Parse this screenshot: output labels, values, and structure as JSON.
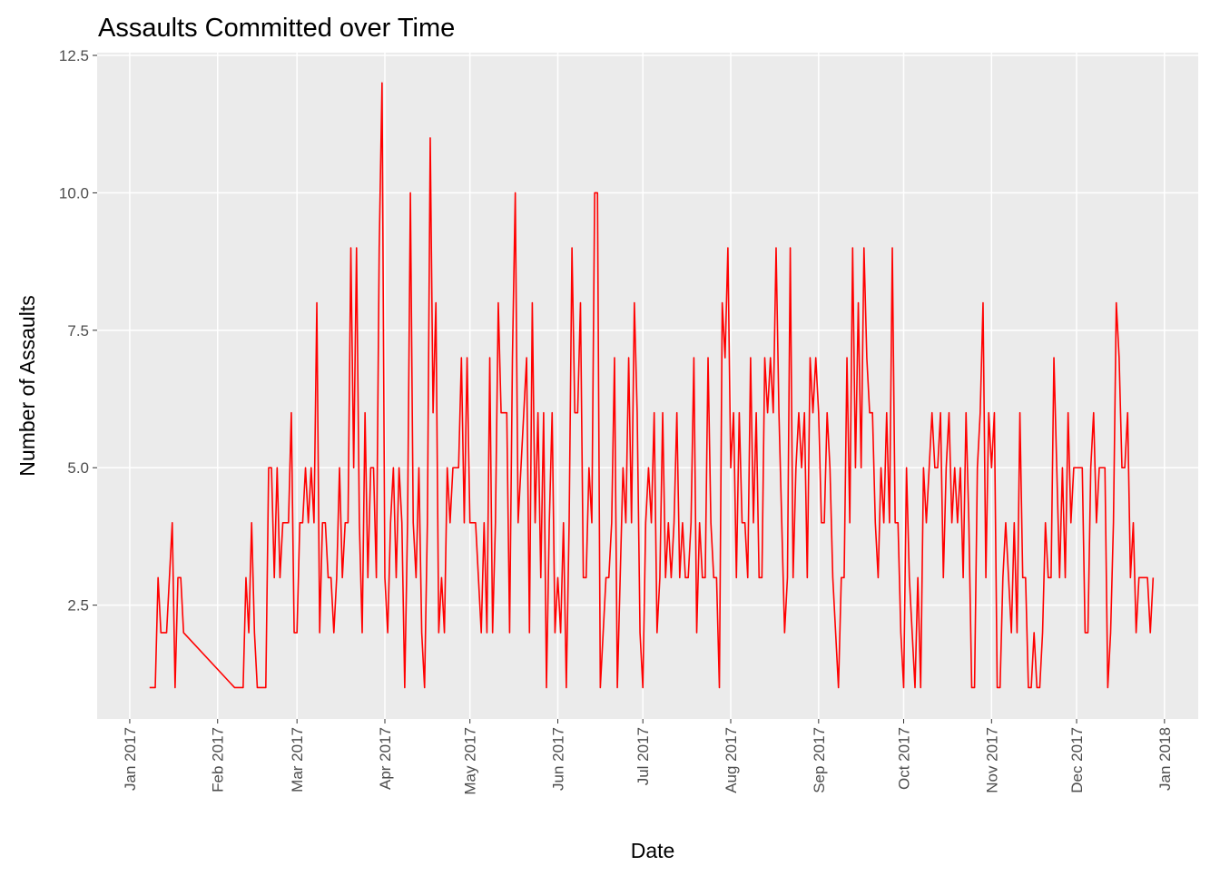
{
  "chart_data": {
    "type": "line",
    "title": "Assaults Committed over Time",
    "x_label": "Date",
    "y_label": "Number of Assaults",
    "xlim": [
      -11.5,
      376.9
    ],
    "xticks": [
      {
        "value": 0,
        "label": "Jan 2017"
      },
      {
        "value": 31,
        "label": "Feb 2017"
      },
      {
        "value": 59,
        "label": "Mar 2017"
      },
      {
        "value": 90,
        "label": "Apr 2017"
      },
      {
        "value": 120,
        "label": "May 2017"
      },
      {
        "value": 151,
        "label": "Jun 2017"
      },
      {
        "value": 181,
        "label": "Jul 2017"
      },
      {
        "value": 212,
        "label": "Aug 2017"
      },
      {
        "value": 243,
        "label": "Sep 2017"
      },
      {
        "value": 273,
        "label": "Oct 2017"
      },
      {
        "value": 304,
        "label": "Nov 2017"
      },
      {
        "value": 334,
        "label": "Dec 2017"
      },
      {
        "value": 365,
        "label": "Jan 2018"
      }
    ],
    "ylim": [
      0.43,
      12.55
    ],
    "yticks": [
      {
        "value": 2.5,
        "label": "2.5"
      },
      {
        "value": 5,
        "label": "5.0"
      },
      {
        "value": 7.5,
        "label": "7.5"
      },
      {
        "value": 10,
        "label": "10.0"
      },
      {
        "value": 12.5,
        "label": "12.5"
      }
    ],
    "grid": true,
    "color": "#ff0000",
    "x": [
      7,
      8,
      9,
      10,
      11,
      12,
      13,
      14,
      15,
      16,
      17,
      18,
      19,
      37,
      38,
      39,
      40,
      41,
      42,
      43,
      44,
      45,
      46,
      47,
      48,
      49,
      50,
      51,
      52,
      53,
      54,
      55,
      56,
      57,
      58,
      59,
      60,
      61,
      62,
      63,
      64,
      65,
      66,
      67,
      68,
      69,
      70,
      71,
      72,
      73,
      74,
      75,
      76,
      77,
      78,
      79,
      80,
      81,
      82,
      83,
      84,
      85,
      86,
      87,
      88,
      89,
      90,
      91,
      92,
      93,
      94,
      95,
      96,
      97,
      98,
      99,
      100,
      101,
      102,
      103,
      104,
      105,
      106,
      107,
      108,
      109,
      110,
      111,
      112,
      113,
      114,
      115,
      116,
      117,
      118,
      119,
      120,
      121,
      122,
      123,
      124,
      125,
      126,
      127,
      128,
      129,
      130,
      131,
      132,
      133,
      134,
      135,
      136,
      137,
      138,
      139,
      140,
      141,
      142,
      143,
      144,
      145,
      146,
      147,
      148,
      149,
      150,
      151,
      152,
      153,
      154,
      155,
      156,
      157,
      158,
      159,
      160,
      161,
      162,
      163,
      164,
      165,
      166,
      167,
      168,
      169,
      170,
      171,
      172,
      173,
      174,
      175,
      176,
      177,
      178,
      179,
      180,
      181,
      182,
      183,
      184,
      185,
      186,
      187,
      188,
      189,
      190,
      191,
      192,
      193,
      194,
      195,
      196,
      197,
      198,
      199,
      200,
      201,
      202,
      203,
      204,
      205,
      206,
      207,
      208,
      209,
      210,
      211,
      212,
      213,
      214,
      215,
      216,
      217,
      218,
      219,
      220,
      221,
      222,
      223,
      224,
      225,
      226,
      227,
      228,
      229,
      230,
      231,
      232,
      233,
      234,
      235,
      236,
      237,
      238,
      239,
      240,
      241,
      242,
      243,
      244,
      245,
      246,
      247,
      248,
      249,
      250,
      251,
      252,
      253,
      254,
      255,
      256,
      257,
      258,
      259,
      260,
      261,
      262,
      263,
      264,
      265,
      266,
      267,
      268,
      269,
      270,
      271,
      272,
      273,
      274,
      275,
      276,
      277,
      278,
      279,
      280,
      281,
      282,
      283,
      284,
      285,
      286,
      287,
      288,
      289,
      290,
      291,
      292,
      293,
      294,
      295,
      296,
      297,
      298,
      299,
      300,
      301,
      302,
      303,
      304,
      305,
      306,
      307,
      308,
      309,
      310,
      311,
      312,
      313,
      314,
      315,
      316,
      317,
      318,
      319,
      320,
      321,
      322,
      323,
      324,
      325,
      326,
      327,
      328,
      329,
      330,
      331,
      332,
      333,
      334,
      335,
      336,
      337,
      338,
      339,
      340,
      341,
      342,
      343,
      344,
      345,
      346,
      347,
      348,
      349,
      350,
      351,
      352,
      353,
      354,
      355,
      356,
      357,
      358,
      359,
      360,
      361
    ],
    "values": [
      1,
      1,
      1,
      3,
      2,
      2,
      2,
      3,
      4,
      1,
      3,
      3,
      2,
      1,
      1,
      1,
      1,
      3,
      2,
      4,
      2,
      1,
      1,
      1,
      1,
      5,
      5,
      3,
      5,
      3,
      4,
      4,
      4,
      6,
      2,
      2,
      4,
      4,
      5,
      4,
      5,
      4,
      8,
      2,
      4,
      4,
      3,
      3,
      2,
      3,
      5,
      3,
      4,
      4,
      9,
      5,
      9,
      4,
      2,
      6,
      3,
      5,
      5,
      3,
      9,
      12,
      3,
      2,
      4,
      5,
      3,
      5,
      4,
      1,
      4,
      10,
      4,
      3,
      5,
      2,
      1,
      4,
      11,
      6,
      8,
      2,
      3,
      2,
      5,
      4,
      5,
      5,
      5,
      7,
      4,
      7,
      4,
      4,
      4,
      3,
      2,
      4,
      2,
      7,
      2,
      4,
      8,
      6,
      6,
      6,
      2,
      7,
      10,
      4,
      5,
      6,
      7,
      2,
      8,
      4,
      6,
      3,
      6,
      1,
      4,
      6,
      2,
      3,
      2,
      4,
      1,
      4,
      9,
      6,
      6,
      8,
      3,
      3,
      5,
      4,
      10,
      10,
      1,
      2,
      3,
      3,
      4,
      7,
      1,
      3,
      5,
      4,
      7,
      4,
      8,
      6,
      2,
      1,
      4,
      5,
      4,
      6,
      2,
      3,
      6,
      3,
      4,
      3,
      4,
      6,
      3,
      4,
      3,
      3,
      4,
      7,
      2,
      4,
      3,
      3,
      7,
      4,
      3,
      3,
      1,
      8,
      7,
      9,
      5,
      6,
      3,
      6,
      4,
      4,
      3,
      7,
      4,
      6,
      3,
      3,
      7,
      6,
      7,
      6,
      9,
      6,
      4,
      2,
      3,
      9,
      3,
      5,
      6,
      5,
      6,
      3,
      7,
      6,
      7,
      6,
      4,
      4,
      6,
      5,
      3,
      2,
      1,
      3,
      3,
      7,
      4,
      9,
      5,
      8,
      5,
      9,
      7,
      6,
      6,
      4,
      3,
      5,
      4,
      6,
      4,
      9,
      4,
      4,
      2,
      1,
      5,
      3,
      2,
      1,
      3,
      1,
      5,
      4,
      5,
      6,
      5,
      5,
      6,
      3,
      5,
      6,
      4,
      5,
      4,
      5,
      3,
      6,
      4,
      1,
      1,
      5,
      6,
      8,
      3,
      6,
      5,
      6,
      1,
      1,
      3,
      4,
      3,
      2,
      4,
      2,
      6,
      3,
      3,
      1,
      1,
      2,
      1,
      1,
      2,
      4,
      3,
      3,
      7,
      5,
      3,
      5,
      3,
      6,
      4,
      5,
      5,
      5,
      5,
      2,
      2,
      5,
      6,
      4,
      5,
      5,
      5,
      1,
      2,
      4,
      8,
      7,
      5,
      5,
      6,
      3,
      4,
      2,
      3,
      3,
      3,
      3,
      2,
      3
    ]
  }
}
